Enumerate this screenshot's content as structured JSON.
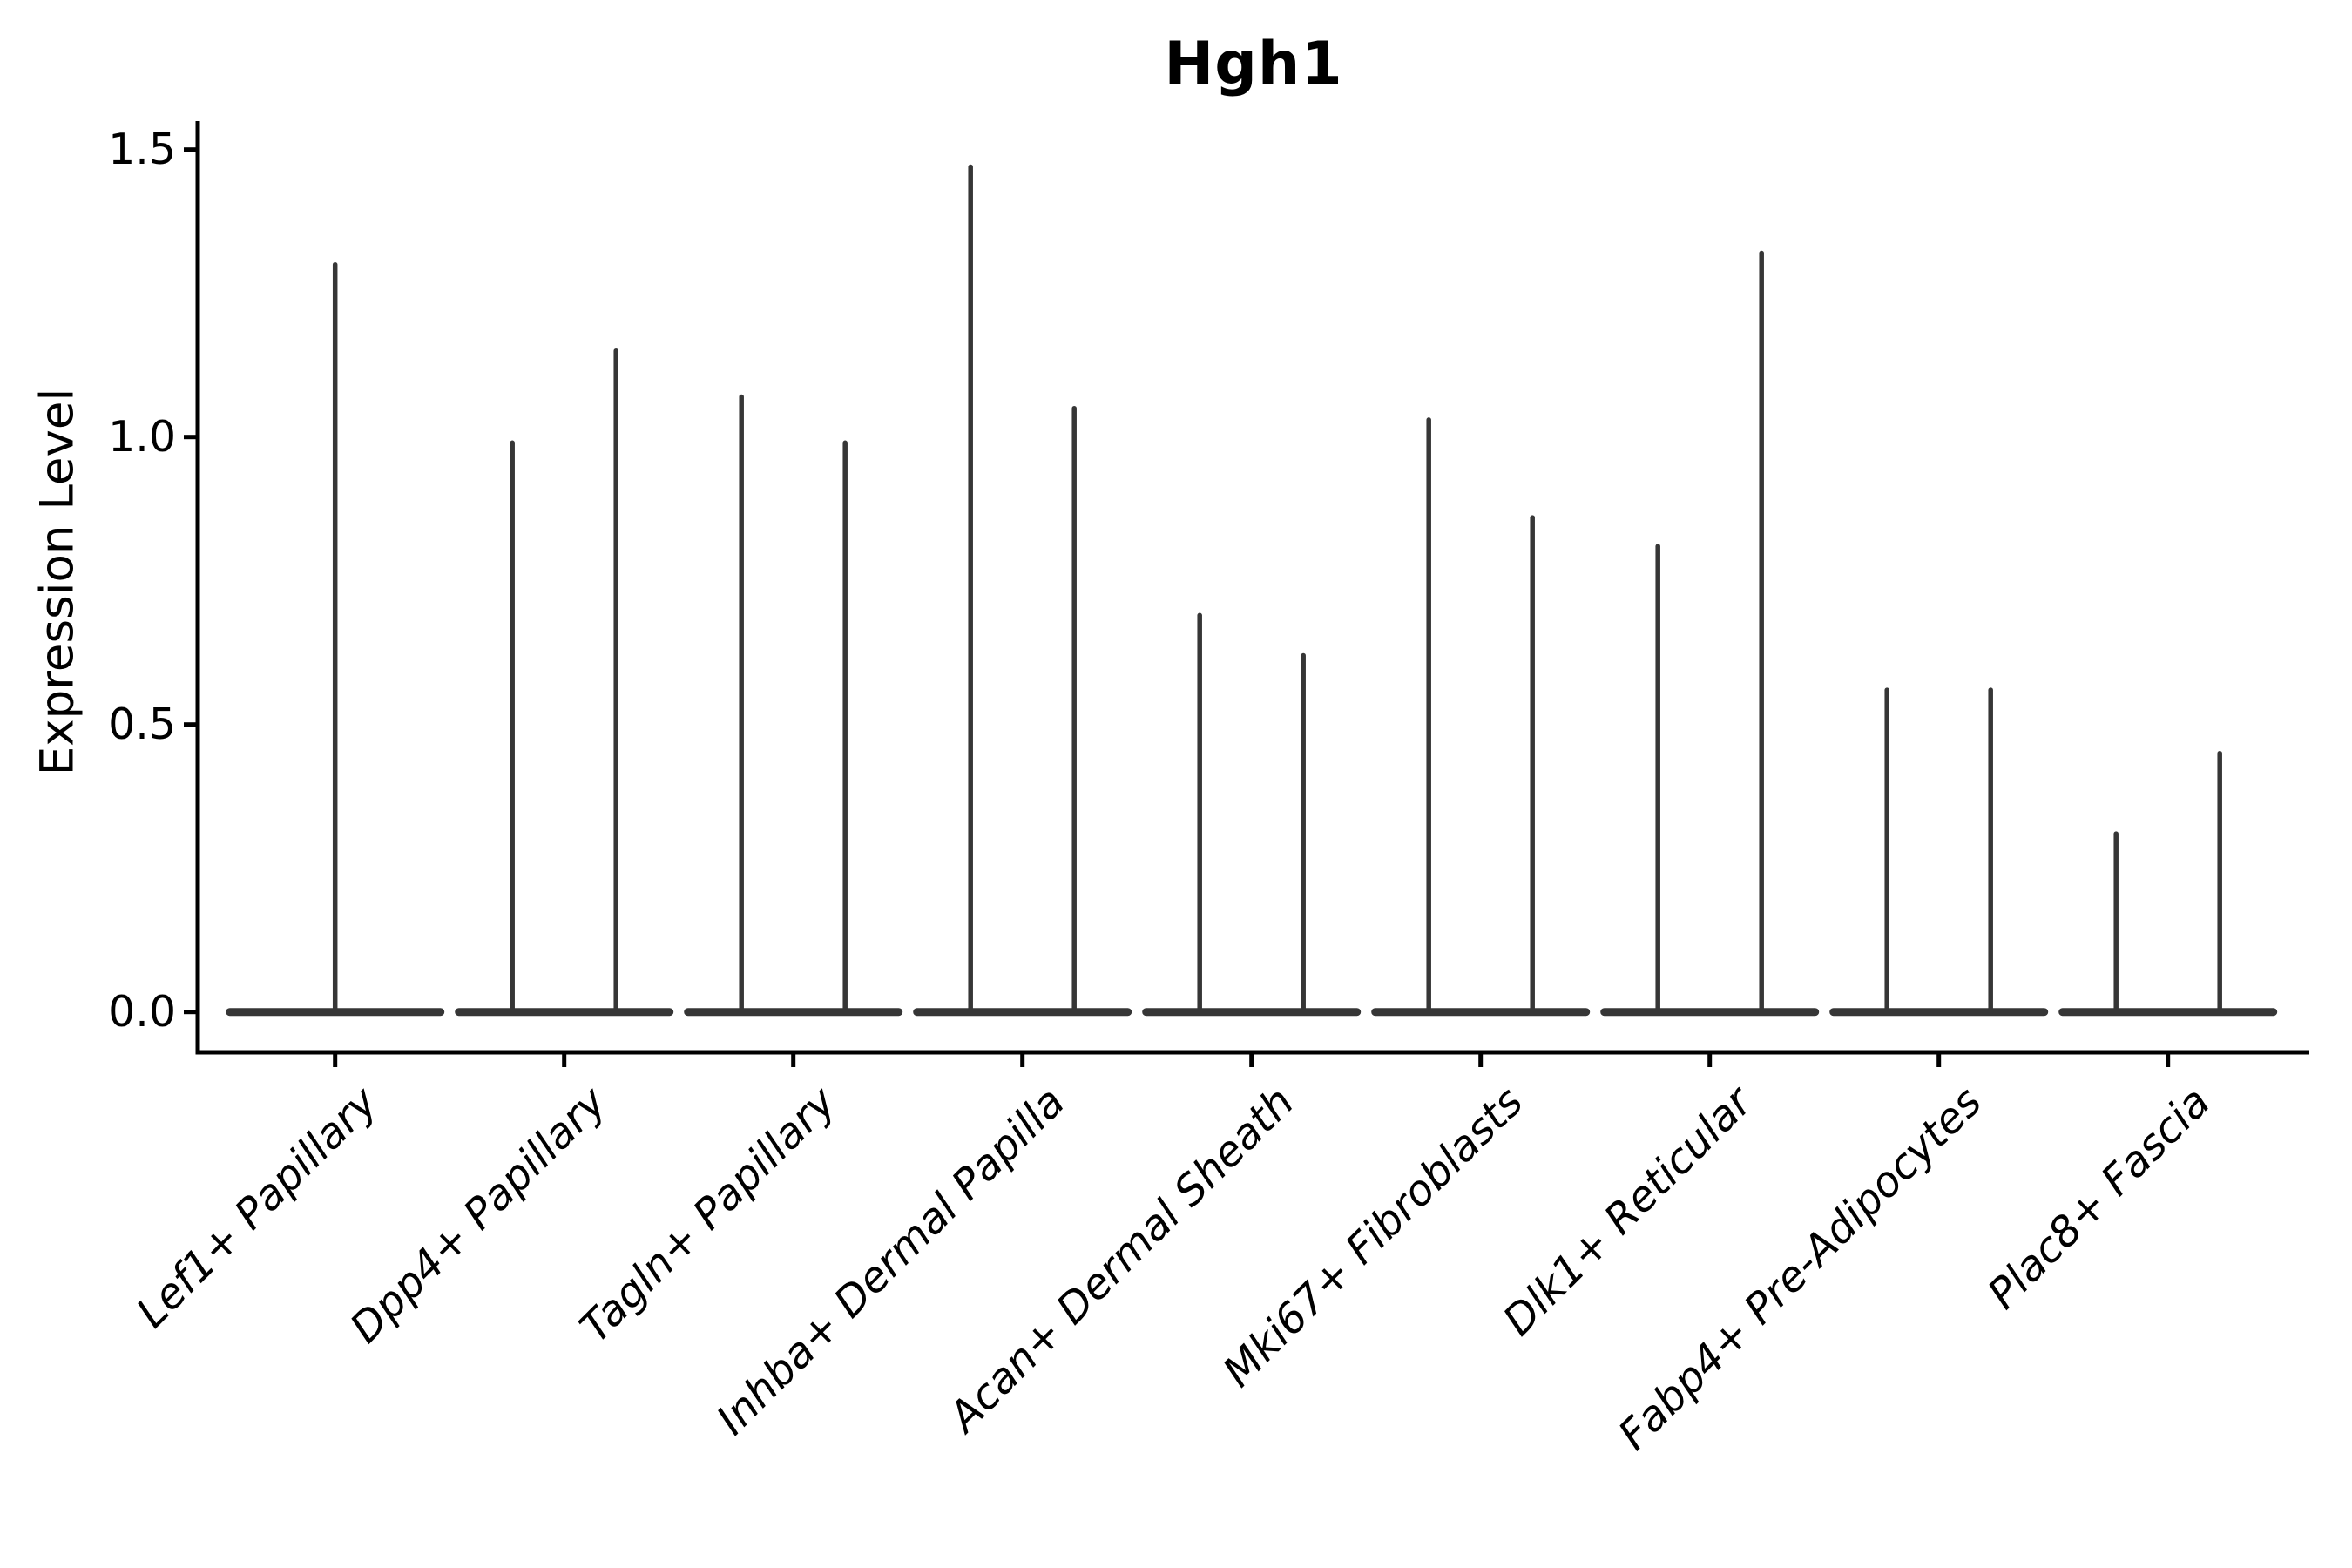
{
  "figure": {
    "title": "Hgh1",
    "ylabel": "Expression Level"
  },
  "chart_data": {
    "type": "violin",
    "title": "Hgh1",
    "xlabel": "",
    "ylabel": "Expression Level",
    "categories": [
      "Lef1+ Papillary",
      "Dpp4+ Papillary",
      "Tagln+ Papillary",
      "Inhba+ Dermal Papilla",
      "Acan+ Dermal Sheath",
      "Mki67+ Fibroblasts",
      "Dlk1+ Reticular",
      "Fabp4+ Pre-Adipocytes",
      "Plac8+ Fascia"
    ],
    "ytick_labels": [
      "0.0",
      "0.5",
      "1.0",
      "1.5"
    ],
    "yticks": [
      0.0,
      0.5,
      1.0,
      1.5
    ],
    "ylim": [
      -0.07,
      1.55
    ],
    "grid": false,
    "legend": null,
    "violins": [
      {
        "category": "Lef1+ Papillary",
        "baseline_value": 0.0,
        "spike_values": [
          1.3
        ]
      },
      {
        "category": "Dpp4+ Papillary",
        "baseline_value": 0.0,
        "spike_values": [
          0.99,
          1.15
        ]
      },
      {
        "category": "Tagln+ Papillary",
        "baseline_value": 0.0,
        "spike_values": [
          1.07,
          0.99
        ]
      },
      {
        "category": "Inhba+ Dermal Papilla",
        "baseline_value": 0.0,
        "spike_values": [
          1.47,
          1.05
        ]
      },
      {
        "category": "Acan+ Dermal Sheath",
        "baseline_value": 0.0,
        "spike_values": [
          0.69,
          0.62
        ]
      },
      {
        "category": "Mki67+ Fibroblasts",
        "baseline_value": 0.0,
        "spike_values": [
          1.03,
          0.86
        ]
      },
      {
        "category": "Dlk1+ Reticular",
        "baseline_value": 0.0,
        "spike_values": [
          0.81,
          1.32
        ]
      },
      {
        "category": "Fabp4+ Pre-Adipocytes",
        "baseline_value": 0.0,
        "spike_values": [
          0.56,
          0.56
        ]
      },
      {
        "category": "Plac8+ Fascia",
        "baseline_value": 0.0,
        "spike_values": [
          0.31,
          0.45
        ]
      }
    ]
  },
  "colors": {
    "violin_stroke": "#363636",
    "axis": "#000000",
    "text": "#000000",
    "background": "#ffffff"
  }
}
